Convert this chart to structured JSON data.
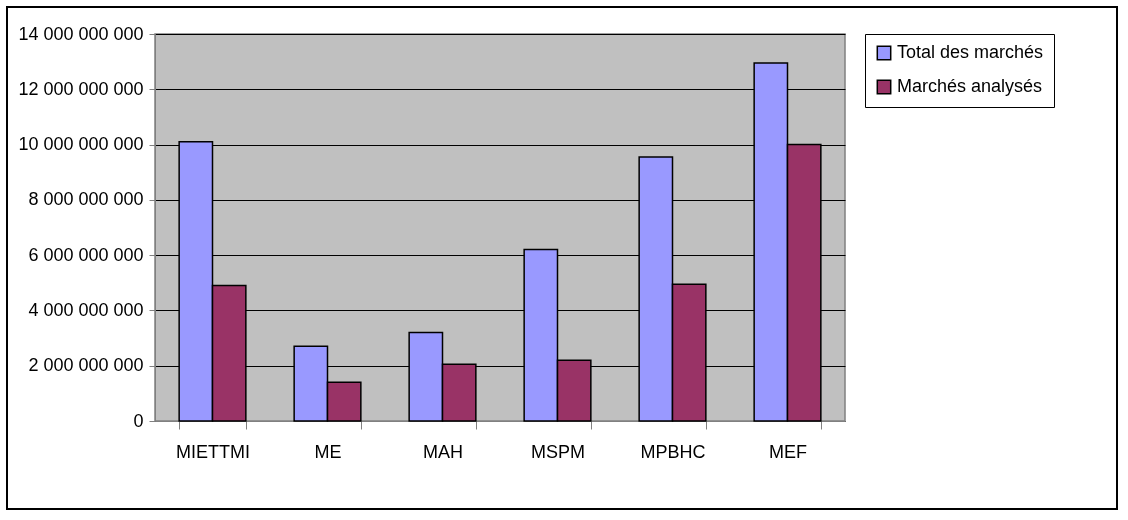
{
  "chart_data": {
    "type": "bar",
    "categories": [
      "MIETTMI",
      "ME",
      "MAH",
      "MSPM",
      "MPBHC",
      "MEF"
    ],
    "series": [
      {
        "name": "Total des marchés",
        "color": "#9999ff",
        "values": [
          10100000000,
          2700000000,
          3200000000,
          6200000000,
          9550000000,
          12950000000
        ]
      },
      {
        "name": "Marchés analysés",
        "color": "#993366",
        "values": [
          4900000000,
          1400000000,
          2050000000,
          2200000000,
          4950000000,
          10000000000
        ]
      }
    ],
    "ylim": [
      0,
      14000000000
    ],
    "yticks": [
      {
        "value": 0,
        "label": "0"
      },
      {
        "value": 2000000000,
        "label": "2 000 000 000"
      },
      {
        "value": 4000000000,
        "label": "4 000 000 000"
      },
      {
        "value": 6000000000,
        "label": "6 000 000 000"
      },
      {
        "value": 8000000000,
        "label": "8 000 000 000"
      },
      {
        "value": 10000000000,
        "label": "10 000 000 000"
      },
      {
        "value": 12000000000,
        "label": "12 000 000 000"
      },
      {
        "value": 14000000000,
        "label": "14 000 000 000"
      }
    ],
    "grid": "y",
    "legend": "right"
  }
}
